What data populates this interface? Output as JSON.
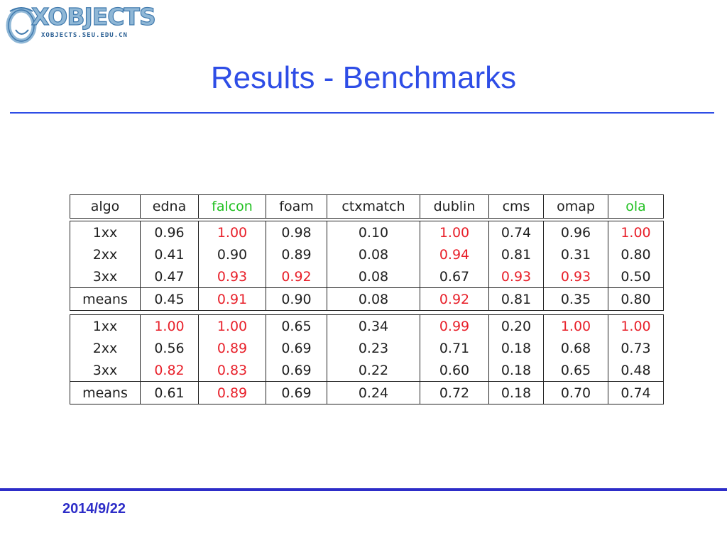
{
  "logo": {
    "wordmark": "XOBJECTS",
    "subtext": "XOBJECTS.SEU.EDU.CN"
  },
  "title": "Results - Benchmarks",
  "footer": {
    "date": "2014/9/22"
  },
  "colors": {
    "title": "#2e4de6",
    "highlight": "#e8202a",
    "header_highlight": "#20c020",
    "rule": "#2e4de6",
    "footer": "#2d2dc8"
  },
  "table": {
    "headers": [
      "algo",
      "edna",
      "falcon",
      "foam",
      "ctxmatch",
      "dublin",
      "cms",
      "omap",
      "ola"
    ],
    "header_highlight": [
      false,
      false,
      true,
      false,
      false,
      false,
      false,
      false,
      true
    ],
    "blocks": [
      {
        "rows": [
          {
            "label": "1xx",
            "values": [
              "0.96",
              "1.00",
              "0.98",
              "0.10",
              "1.00",
              "0.74",
              "0.96",
              "1.00"
            ],
            "red": [
              false,
              true,
              false,
              false,
              true,
              false,
              false,
              true
            ]
          },
          {
            "label": "2xx",
            "values": [
              "0.41",
              "0.90",
              "0.89",
              "0.08",
              "0.94",
              "0.81",
              "0.31",
              "0.80"
            ],
            "red": [
              false,
              false,
              false,
              false,
              true,
              false,
              false,
              false
            ]
          },
          {
            "label": "3xx",
            "values": [
              "0.47",
              "0.93",
              "0.92",
              "0.08",
              "0.67",
              "0.93",
              "0.93",
              "0.50"
            ],
            "red": [
              false,
              true,
              true,
              false,
              false,
              true,
              true,
              false
            ]
          }
        ],
        "means": {
          "label": "means",
          "values": [
            "0.45",
            "0.91",
            "0.90",
            "0.08",
            "0.92",
            "0.81",
            "0.35",
            "0.80"
          ],
          "red": [
            false,
            true,
            false,
            false,
            true,
            false,
            false,
            false
          ]
        }
      },
      {
        "rows": [
          {
            "label": "1xx",
            "values": [
              "1.00",
              "1.00",
              "0.65",
              "0.34",
              "0.99",
              "0.20",
              "1.00",
              "1.00"
            ],
            "red": [
              true,
              true,
              false,
              false,
              true,
              false,
              true,
              true
            ]
          },
          {
            "label": "2xx",
            "values": [
              "0.56",
              "0.89",
              "0.69",
              "0.23",
              "0.71",
              "0.18",
              "0.68",
              "0.73"
            ],
            "red": [
              false,
              true,
              false,
              false,
              false,
              false,
              false,
              false
            ]
          },
          {
            "label": "3xx",
            "values": [
              "0.82",
              "0.83",
              "0.69",
              "0.22",
              "0.60",
              "0.18",
              "0.65",
              "0.48"
            ],
            "red": [
              true,
              true,
              false,
              false,
              false,
              false,
              false,
              false
            ]
          }
        ],
        "means": {
          "label": "means",
          "values": [
            "0.61",
            "0.89",
            "0.69",
            "0.24",
            "0.72",
            "0.18",
            "0.70",
            "0.74"
          ],
          "red": [
            false,
            true,
            false,
            false,
            false,
            false,
            false,
            false
          ]
        }
      }
    ]
  }
}
